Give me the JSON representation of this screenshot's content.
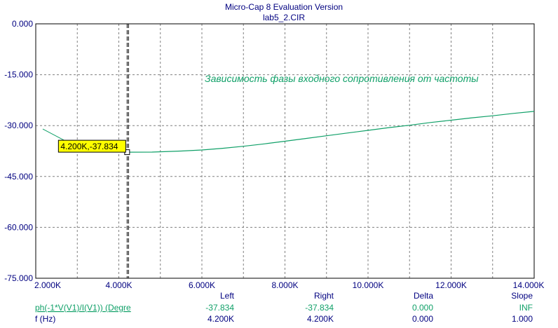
{
  "window": {
    "title": "Micro-Cap 8 Evaluation Version",
    "file": "lab5_2.CIR"
  },
  "chart_data": {
    "type": "line",
    "x_ticks": [
      "2.000K",
      "4.000K",
      "6.000K",
      "8.000K",
      "10.000K",
      "12.000K",
      "14.000K"
    ],
    "y_ticks": [
      "0.000",
      "-15.000",
      "-30.000",
      "-45.000",
      "-60.000",
      "-75.000"
    ],
    "xlim": [
      2000,
      14000
    ],
    "ylim": [
      -75,
      0
    ],
    "grid": true,
    "annotation": "Зависимость фазы входного сопротивления от частоты",
    "cursor_label": "4.200K,-37.834",
    "cursor_x": 4200,
    "cursor_y": -37.834,
    "series": [
      {
        "color": "#10a068",
        "points": [
          [
            4200,
            -37.834
          ],
          [
            4800,
            -37.8
          ],
          [
            5500,
            -37.5
          ],
          [
            6000,
            -37.2
          ],
          [
            6500,
            -36.7
          ],
          [
            7000,
            -36.1
          ],
          [
            7500,
            -35.4
          ],
          [
            8000,
            -34.6
          ],
          [
            8500,
            -33.8
          ],
          [
            9000,
            -33.0
          ],
          [
            9500,
            -32.2
          ],
          [
            10000,
            -31.4
          ],
          [
            10500,
            -30.6
          ],
          [
            11000,
            -29.9
          ],
          [
            11500,
            -29.1
          ],
          [
            12000,
            -28.4
          ],
          [
            12500,
            -27.7
          ],
          [
            13000,
            -27.1
          ],
          [
            13500,
            -26.4
          ],
          [
            14000,
            -25.8
          ]
        ]
      }
    ]
  },
  "readout": {
    "headers": {
      "left": "Left",
      "right": "Right",
      "delta": "Delta",
      "slope": "Slope"
    },
    "rows": [
      {
        "expr": "ph(-1*V(V1)/I(V1)) (Degre",
        "left": "-37.834",
        "right": "-37.834",
        "delta": "0.000",
        "slope": "INF"
      },
      {
        "expr": "f (Hz)",
        "left": "4.200K",
        "right": "4.200K",
        "delta": "0.000",
        "slope": "1.000"
      }
    ]
  }
}
